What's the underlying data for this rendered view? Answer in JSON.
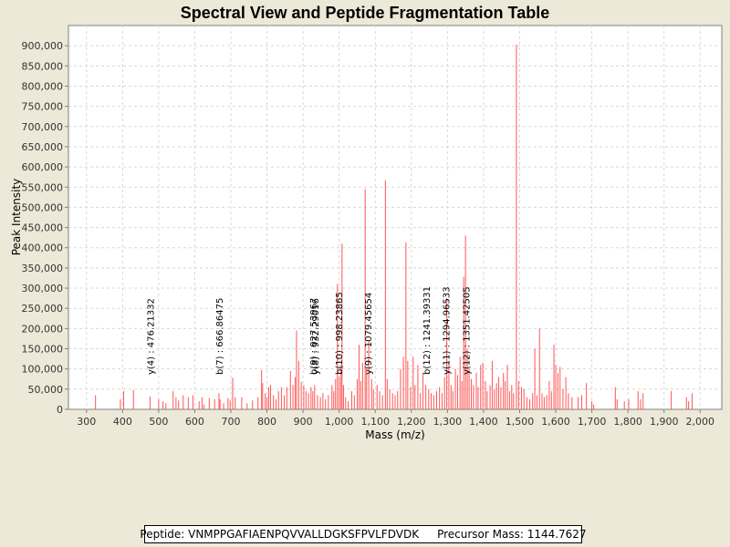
{
  "chart_data": {
    "type": "bar",
    "title": "Spectral View and Peptide Fragmentation Table",
    "xlabel": "Mass (m/z)",
    "ylabel": "Peak Intensity",
    "xlim": [
      250,
      2060
    ],
    "ylim": [
      0,
      950000
    ],
    "xticks": [
      300,
      400,
      500,
      600,
      700,
      800,
      900,
      1000,
      1100,
      1200,
      1300,
      1400,
      1500,
      1600,
      1700,
      1800,
      1900,
      2000
    ],
    "xtick_labels": [
      "300",
      "400",
      "500",
      "600",
      "700",
      "800",
      "900",
      "1,000",
      "1,100",
      "1,200",
      "1,300",
      "1,400",
      "1,500",
      "1,600",
      "1,700",
      "1,800",
      "1,900",
      "2,000"
    ],
    "yticks": [
      0,
      50000,
      100000,
      150000,
      200000,
      250000,
      300000,
      350000,
      400000,
      450000,
      500000,
      550000,
      600000,
      650000,
      700000,
      750000,
      800000,
      850000,
      900000
    ],
    "ytick_labels": [
      "0",
      "50,000",
      "100,000",
      "150,000",
      "200,000",
      "250,000",
      "300,000",
      "350,000",
      "400,000",
      "450,000",
      "500,000",
      "550,000",
      "600,000",
      "650,000",
      "700,000",
      "750,000",
      "800,000",
      "850,000",
      "900,000"
    ],
    "grid": true,
    "peak_color": "#ff5555",
    "peaks": [
      [
        325,
        35000
      ],
      [
        394,
        25000
      ],
      [
        403,
        45000
      ],
      [
        430,
        48000
      ],
      [
        476,
        32000
      ],
      [
        500,
        25000
      ],
      [
        512,
        20000
      ],
      [
        520,
        15000
      ],
      [
        540,
        45000
      ],
      [
        548,
        30000
      ],
      [
        555,
        22000
      ],
      [
        568,
        35000
      ],
      [
        582,
        30000
      ],
      [
        595,
        35000
      ],
      [
        612,
        20000
      ],
      [
        620,
        30000
      ],
      [
        625,
        12000
      ],
      [
        640,
        28000
      ],
      [
        655,
        25000
      ],
      [
        667,
        40000
      ],
      [
        670,
        25000
      ],
      [
        680,
        15000
      ],
      [
        692,
        28000
      ],
      [
        698,
        22000
      ],
      [
        705,
        78000
      ],
      [
        712,
        30000
      ],
      [
        730,
        30000
      ],
      [
        745,
        15000
      ],
      [
        760,
        22000
      ],
      [
        775,
        30000
      ],
      [
        785,
        97000
      ],
      [
        788,
        65000
      ],
      [
        795,
        40000
      ],
      [
        800,
        30000
      ],
      [
        805,
        55000
      ],
      [
        810,
        60000
      ],
      [
        818,
        35000
      ],
      [
        825,
        25000
      ],
      [
        832,
        45000
      ],
      [
        840,
        55000
      ],
      [
        848,
        35000
      ],
      [
        855,
        55000
      ],
      [
        865,
        95000
      ],
      [
        872,
        60000
      ],
      [
        878,
        80000
      ],
      [
        882,
        195000
      ],
      [
        888,
        120000
      ],
      [
        895,
        68000
      ],
      [
        902,
        60000
      ],
      [
        908,
        45000
      ],
      [
        915,
        40000
      ],
      [
        922,
        55000
      ],
      [
        927,
        45000
      ],
      [
        932,
        60000
      ],
      [
        940,
        35000
      ],
      [
        948,
        30000
      ],
      [
        955,
        40000
      ],
      [
        962,
        25000
      ],
      [
        970,
        35000
      ],
      [
        980,
        60000
      ],
      [
        985,
        45000
      ],
      [
        990,
        75000
      ],
      [
        995,
        310000
      ],
      [
        1000,
        80000
      ],
      [
        1005,
        110000
      ],
      [
        1008,
        410000
      ],
      [
        1012,
        60000
      ],
      [
        1018,
        30000
      ],
      [
        1025,
        20000
      ],
      [
        1035,
        45000
      ],
      [
        1042,
        35000
      ],
      [
        1050,
        75000
      ],
      [
        1055,
        160000
      ],
      [
        1060,
        70000
      ],
      [
        1065,
        115000
      ],
      [
        1072,
        545000
      ],
      [
        1076,
        100000
      ],
      [
        1082,
        170000
      ],
      [
        1090,
        75000
      ],
      [
        1095,
        50000
      ],
      [
        1105,
        60000
      ],
      [
        1112,
        45000
      ],
      [
        1120,
        35000
      ],
      [
        1128,
        567000
      ],
      [
        1133,
        75000
      ],
      [
        1140,
        50000
      ],
      [
        1148,
        40000
      ],
      [
        1155,
        35000
      ],
      [
        1162,
        45000
      ],
      [
        1170,
        100000
      ],
      [
        1178,
        130000
      ],
      [
        1185,
        413000
      ],
      [
        1190,
        120000
      ],
      [
        1198,
        55000
      ],
      [
        1205,
        130000
      ],
      [
        1210,
        60000
      ],
      [
        1218,
        110000
      ],
      [
        1225,
        40000
      ],
      [
        1232,
        90000
      ],
      [
        1240,
        60000
      ],
      [
        1248,
        50000
      ],
      [
        1255,
        40000
      ],
      [
        1262,
        35000
      ],
      [
        1270,
        45000
      ],
      [
        1278,
        55000
      ],
      [
        1285,
        40000
      ],
      [
        1292,
        80000
      ],
      [
        1298,
        275000
      ],
      [
        1304,
        115000
      ],
      [
        1310,
        60000
      ],
      [
        1315,
        45000
      ],
      [
        1322,
        100000
      ],
      [
        1328,
        85000
      ],
      [
        1335,
        130000
      ],
      [
        1340,
        70000
      ],
      [
        1345,
        328000
      ],
      [
        1350,
        430000
      ],
      [
        1355,
        150000
      ],
      [
        1360,
        100000
      ],
      [
        1366,
        75000
      ],
      [
        1372,
        60000
      ],
      [
        1380,
        90000
      ],
      [
        1385,
        55000
      ],
      [
        1392,
        110000
      ],
      [
        1398,
        115000
      ],
      [
        1405,
        70000
      ],
      [
        1410,
        45000
      ],
      [
        1418,
        60000
      ],
      [
        1424,
        120000
      ],
      [
        1430,
        50000
      ],
      [
        1436,
        65000
      ],
      [
        1442,
        80000
      ],
      [
        1448,
        55000
      ],
      [
        1455,
        90000
      ],
      [
        1460,
        70000
      ],
      [
        1466,
        110000
      ],
      [
        1472,
        45000
      ],
      [
        1478,
        60000
      ],
      [
        1483,
        40000
      ],
      [
        1491,
        903000
      ],
      [
        1497,
        70000
      ],
      [
        1505,
        55000
      ],
      [
        1512,
        50000
      ],
      [
        1520,
        30000
      ],
      [
        1528,
        25000
      ],
      [
        1536,
        40000
      ],
      [
        1542,
        150000
      ],
      [
        1548,
        35000
      ],
      [
        1555,
        200000
      ],
      [
        1562,
        40000
      ],
      [
        1568,
        30000
      ],
      [
        1575,
        35000
      ],
      [
        1582,
        70000
      ],
      [
        1588,
        45000
      ],
      [
        1595,
        160000
      ],
      [
        1600,
        110000
      ],
      [
        1606,
        90000
      ],
      [
        1612,
        105000
      ],
      [
        1620,
        50000
      ],
      [
        1628,
        80000
      ],
      [
        1635,
        40000
      ],
      [
        1645,
        30000
      ],
      [
        1662,
        30000
      ],
      [
        1672,
        35000
      ],
      [
        1685,
        65000
      ],
      [
        1700,
        20000
      ],
      [
        1705,
        12000
      ],
      [
        1765,
        55000
      ],
      [
        1770,
        25000
      ],
      [
        1790,
        20000
      ],
      [
        1802,
        25000
      ],
      [
        1828,
        45000
      ],
      [
        1835,
        25000
      ],
      [
        1842,
        40000
      ],
      [
        1920,
        45000
      ],
      [
        1962,
        30000
      ],
      [
        1968,
        20000
      ],
      [
        1978,
        40000
      ]
    ],
    "annotations": [
      {
        "mz": 476,
        "label": "y(4) : 476.21332"
      },
      {
        "mz": 667,
        "label": "b(7) : 666.86475"
      },
      {
        "mz": 927.5,
        "label": "b(9) : 927.53967"
      },
      {
        "mz": 932,
        "label": "y(8) : 932.29016"
      },
      {
        "mz": 998,
        "label": "b(10) : 998.23865"
      },
      {
        "mz": 1079,
        "label": "y(9) : 1079.45654"
      },
      {
        "mz": 1241,
        "label": "b(12) : 1241.39331"
      },
      {
        "mz": 1295,
        "label": "y(11) : 1294.96533"
      },
      {
        "mz": 1351,
        "label": "y(12) : 1351.42505"
      }
    ]
  },
  "caption": {
    "peptide": "Peptide: VNMPPGAFIAENPQVVALLDGKSFPVLFDVDK",
    "precursor": "Precursor Mass: 1144.7627"
  }
}
